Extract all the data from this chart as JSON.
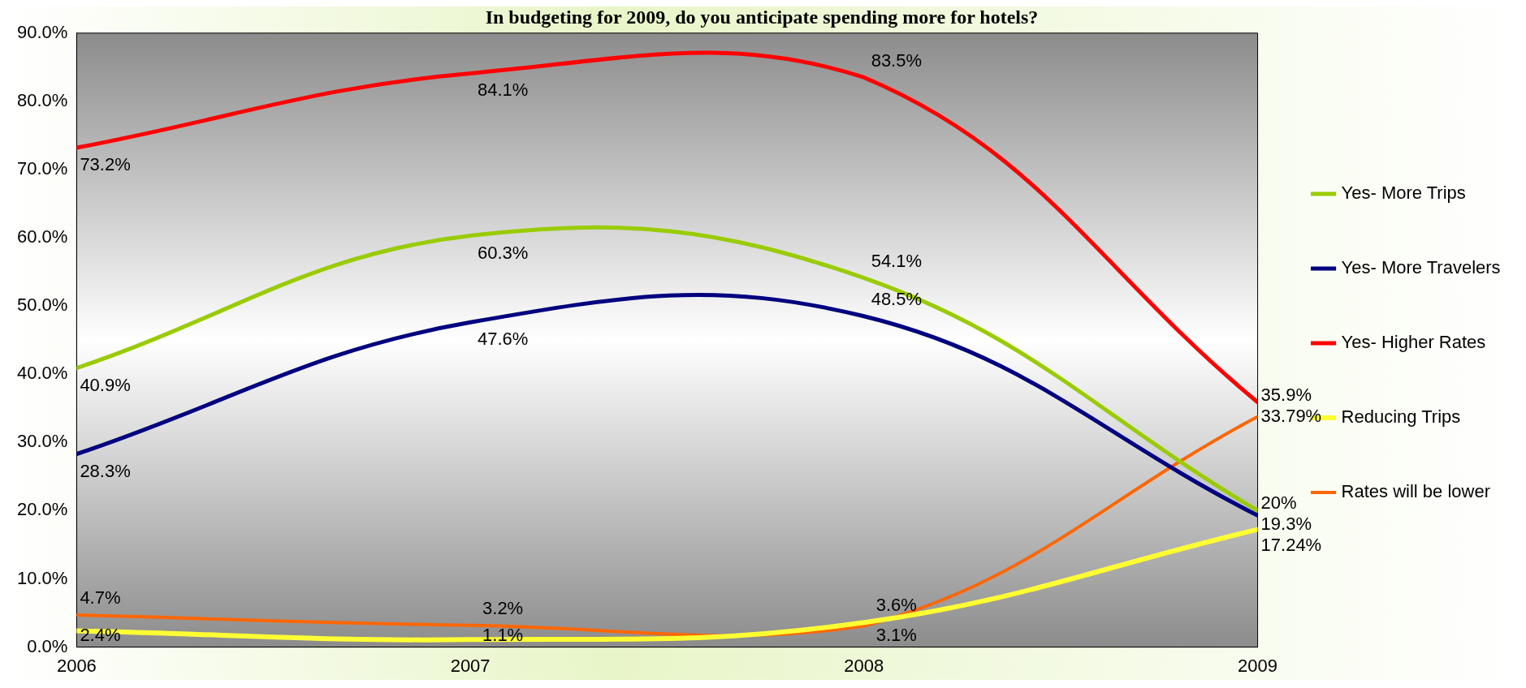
{
  "chart_data": {
    "type": "line",
    "title": "In budgeting for 2009, do you anticipate spending more for hotels?",
    "x": [
      2006,
      2007,
      2008,
      2009
    ],
    "xlim": [
      2006,
      2009
    ],
    "xticks": [
      2006,
      2007,
      2008,
      2009
    ],
    "ylim": [
      0,
      90
    ],
    "yticks": [
      {
        "value": 0,
        "label": "0.0%"
      },
      {
        "value": 10,
        "label": "10.0%"
      },
      {
        "value": 20,
        "label": "20.0%"
      },
      {
        "value": 30,
        "label": "30.0%"
      },
      {
        "value": 40,
        "label": "40.0%"
      },
      {
        "value": 50,
        "label": "50.0%"
      },
      {
        "value": 60,
        "label": "60.0%"
      },
      {
        "value": 70,
        "label": "70.0%"
      },
      {
        "value": 80,
        "label": "80.0%"
      },
      {
        "value": 90,
        "label": "90.0%"
      }
    ],
    "grid": false,
    "legend": "right",
    "marker": "none",
    "line_style": "solid",
    "series": [
      {
        "name": "Yes- More Trips",
        "color": "#99cc00",
        "values": [
          40.9,
          60.3,
          54.1,
          20
        ],
        "value_labels": [
          "40.9%",
          "60.3%",
          "54.1%",
          "20%"
        ]
      },
      {
        "name": "Yes- More Travelers",
        "color": "#000080",
        "values": [
          28.3,
          47.6,
          48.5,
          19.3
        ],
        "value_labels": [
          "28.3%",
          "47.6%",
          "48.5%",
          "19.3%"
        ]
      },
      {
        "name": "Yes- Higher Rates",
        "color": "#ff0000",
        "values": [
          73.2,
          84.1,
          83.5,
          35.9
        ],
        "value_labels": [
          "73.2%",
          "84.1%",
          "83.5%",
          "35.9%"
        ]
      },
      {
        "name": "Reducing Trips",
        "color": "#ffff33",
        "values": [
          2.4,
          1.1,
          3.6,
          17.24
        ],
        "value_labels": [
          "2.4%",
          "1.1%",
          "3.6%",
          "17.24%"
        ]
      },
      {
        "name": "Rates will be lower",
        "color": "#ff6600",
        "values": [
          4.7,
          3.2,
          3.1,
          33.79
        ],
        "value_labels": [
          "4.7%",
          "3.2%",
          "3.1%",
          "33.79%"
        ]
      }
    ]
  }
}
